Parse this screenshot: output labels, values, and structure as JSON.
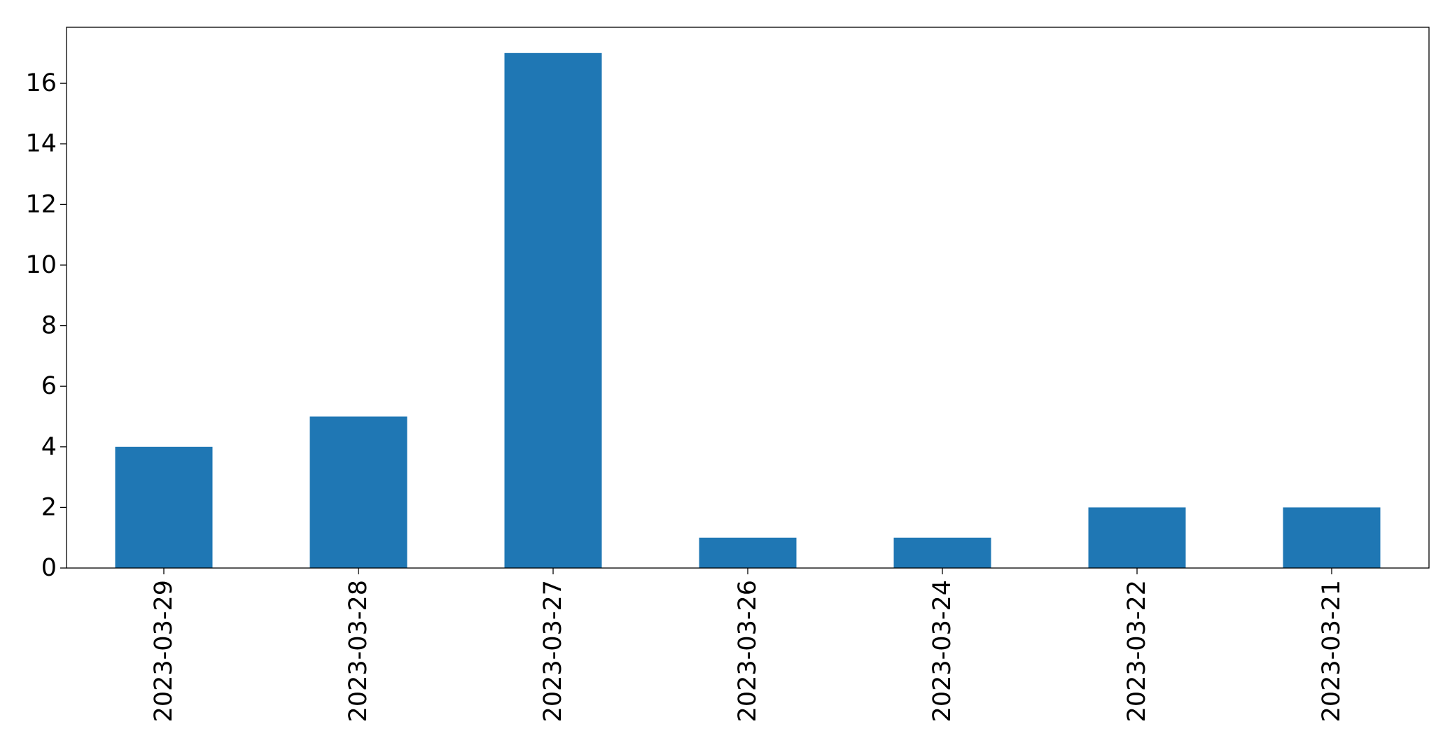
{
  "chart_data": {
    "type": "bar",
    "categories": [
      "2023-03-29",
      "2023-03-28",
      "2023-03-27",
      "2023-03-26",
      "2023-03-24",
      "2023-03-22",
      "2023-03-21"
    ],
    "values": [
      4,
      5,
      17,
      1,
      1,
      2,
      2
    ],
    "ylim": [
      0,
      17.85
    ],
    "yticks": [
      0,
      2,
      4,
      6,
      8,
      10,
      12,
      14,
      16
    ],
    "grid": false,
    "legend": false,
    "bar_color": "#1f77b4",
    "axis_color": "#000000"
  }
}
